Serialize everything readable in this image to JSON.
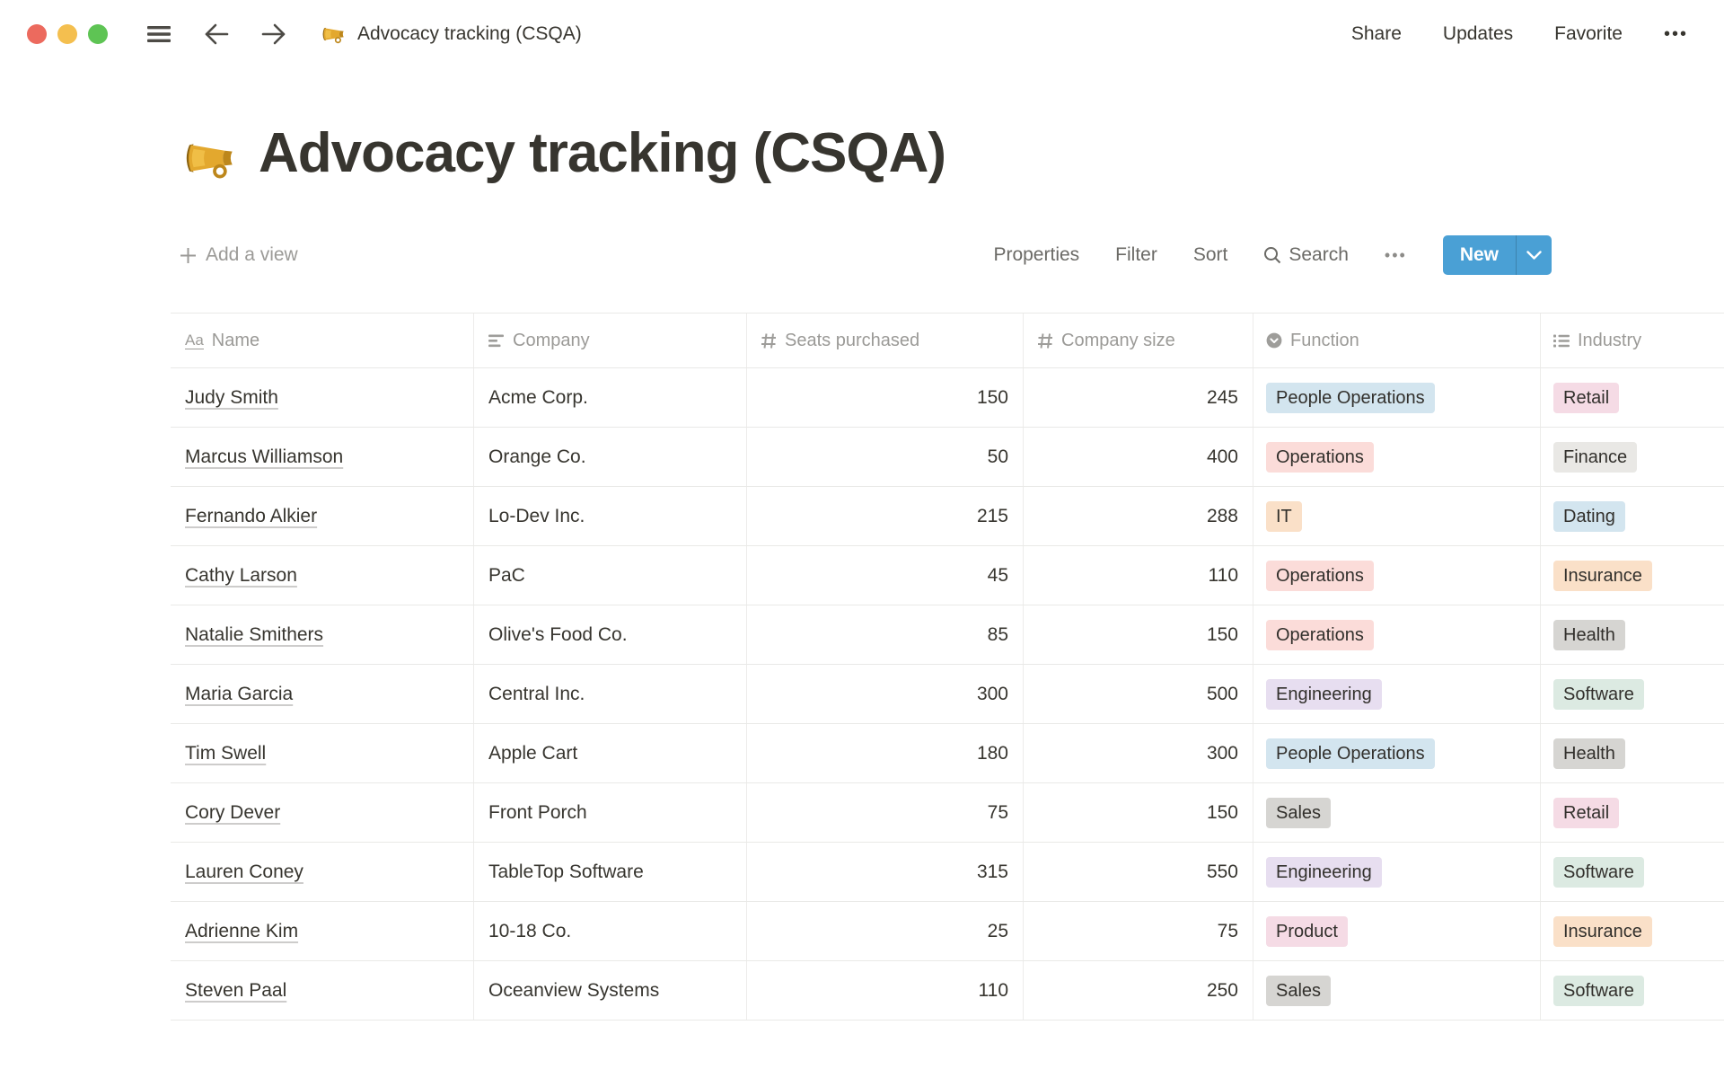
{
  "window": {
    "breadcrumb": "Advocacy tracking (CSQA)"
  },
  "topbar": {
    "share": "Share",
    "updates": "Updates",
    "favorite": "Favorite",
    "more": "•••"
  },
  "page": {
    "title": "Advocacy tracking (CSQA)",
    "emoji": "megaphone"
  },
  "toolbar": {
    "add_view": "Add a view",
    "properties": "Properties",
    "filter": "Filter",
    "sort": "Sort",
    "search": "Search",
    "more": "•••",
    "new_label": "New"
  },
  "colors": {
    "accent_blue": "#4AA0D5",
    "tags": {
      "blue": "#D3E5EF",
      "red": "#FBDCD9",
      "orange": "#FAE0C8",
      "purple": "#E7DEF0",
      "pink": "#F5DBE5",
      "gray": "#D6D5D2",
      "light_gray": "#E9E8E5",
      "green": "#DCEAE2"
    }
  },
  "table": {
    "columns": [
      {
        "label": "Name",
        "icon": "title-icon",
        "type": "title"
      },
      {
        "label": "Company",
        "icon": "text-icon",
        "type": "text"
      },
      {
        "label": "Seats purchased",
        "icon": "hash-icon",
        "type": "number"
      },
      {
        "label": "Company size",
        "icon": "hash-icon",
        "type": "number"
      },
      {
        "label": "Function",
        "icon": "select-icon",
        "type": "select"
      },
      {
        "label": "Industry",
        "icon": "multi-select-icon",
        "type": "multi_select"
      }
    ],
    "rows": [
      {
        "name": "Judy Smith",
        "company": "Acme Corp.",
        "seats": "150",
        "size": "245",
        "function": {
          "label": "People Operations",
          "color": "blue"
        },
        "industry": {
          "label": "Retail",
          "color": "pink"
        }
      },
      {
        "name": "Marcus Williamson",
        "company": "Orange Co.",
        "seats": "50",
        "size": "400",
        "function": {
          "label": "Operations",
          "color": "red"
        },
        "industry": {
          "label": "Finance",
          "color": "light_gray"
        }
      },
      {
        "name": "Fernando Alkier",
        "company": "Lo-Dev Inc.",
        "seats": "215",
        "size": "288",
        "function": {
          "label": "IT",
          "color": "orange"
        },
        "industry": {
          "label": "Dating",
          "color": "blue"
        }
      },
      {
        "name": "Cathy Larson",
        "company": "PaC",
        "seats": "45",
        "size": "110",
        "function": {
          "label": "Operations",
          "color": "red"
        },
        "industry": {
          "label": "Insurance",
          "color": "orange"
        }
      },
      {
        "name": "Natalie Smithers",
        "company": "Olive's Food Co.",
        "seats": "85",
        "size": "150",
        "function": {
          "label": "Operations",
          "color": "red"
        },
        "industry": {
          "label": "Health",
          "color": "gray"
        }
      },
      {
        "name": "Maria Garcia",
        "company": "Central Inc.",
        "seats": "300",
        "size": "500",
        "function": {
          "label": "Engineering",
          "color": "purple"
        },
        "industry": {
          "label": "Software",
          "color": "green"
        }
      },
      {
        "name": "Tim Swell",
        "company": "Apple Cart",
        "seats": "180",
        "size": "300",
        "function": {
          "label": "People Operations",
          "color": "blue"
        },
        "industry": {
          "label": "Health",
          "color": "gray"
        }
      },
      {
        "name": "Cory Dever",
        "company": "Front Porch",
        "seats": "75",
        "size": "150",
        "function": {
          "label": "Sales",
          "color": "gray"
        },
        "industry": {
          "label": "Retail",
          "color": "pink"
        }
      },
      {
        "name": "Lauren Coney",
        "company": "TableTop Software",
        "seats": "315",
        "size": "550",
        "function": {
          "label": "Engineering",
          "color": "purple"
        },
        "industry": {
          "label": "Software",
          "color": "green"
        }
      },
      {
        "name": "Adrienne Kim",
        "company": "10-18 Co.",
        "seats": "25",
        "size": "75",
        "function": {
          "label": "Product",
          "color": "pink"
        },
        "industry": {
          "label": "Insurance",
          "color": "orange"
        }
      },
      {
        "name": "Steven Paal",
        "company": "Oceanview Systems",
        "seats": "110",
        "size": "250",
        "function": {
          "label": "Sales",
          "color": "gray"
        },
        "industry": {
          "label": "Software",
          "color": "green"
        }
      }
    ]
  }
}
